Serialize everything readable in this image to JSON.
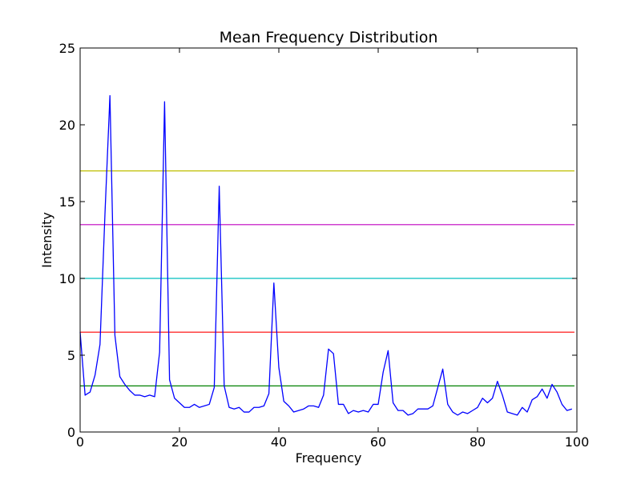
{
  "chart_data": {
    "type": "line",
    "title": "Mean Frequency Distribution",
    "xlabel": "Frequency",
    "ylabel": "Intensity",
    "xlim": [
      0,
      100
    ],
    "ylim": [
      0,
      25
    ],
    "xticks": [
      0,
      20,
      40,
      60,
      80,
      100
    ],
    "yticks": [
      0,
      5,
      10,
      15,
      20,
      25
    ],
    "grid": false,
    "series": [
      {
        "color": "#0000ff",
        "x": [
          0,
          1,
          2,
          3,
          4,
          5,
          6,
          7,
          8,
          9,
          10,
          11,
          12,
          13,
          14,
          15,
          16,
          17,
          18,
          19,
          20,
          21,
          22,
          23,
          24,
          25,
          26,
          27,
          28,
          29,
          30,
          31,
          32,
          33,
          34,
          35,
          36,
          37,
          38,
          39,
          40,
          41,
          42,
          43,
          44,
          45,
          46,
          47,
          48,
          49,
          50,
          51,
          52,
          53,
          54,
          55,
          56,
          57,
          58,
          59,
          60,
          61,
          62,
          63,
          64,
          65,
          66,
          67,
          68,
          69,
          70,
          71,
          72,
          73,
          74,
          75,
          76,
          77,
          78,
          79,
          80,
          81,
          82,
          83,
          84,
          85,
          86,
          87,
          88,
          89,
          90,
          91,
          92,
          93,
          94,
          95,
          96,
          97,
          98,
          99
        ],
        "y": [
          6.5,
          2.4,
          2.6,
          3.7,
          5.7,
          14.2,
          21.9,
          6.3,
          3.6,
          3.1,
          2.7,
          2.4,
          2.4,
          2.3,
          2.4,
          2.3,
          5.2,
          21.5,
          3.4,
          2.2,
          1.9,
          1.6,
          1.6,
          1.8,
          1.6,
          1.7,
          1.8,
          2.9,
          16.0,
          3.0,
          1.6,
          1.5,
          1.6,
          1.3,
          1.3,
          1.6,
          1.6,
          1.7,
          2.5,
          9.7,
          4.2,
          2.0,
          1.7,
          1.3,
          1.4,
          1.5,
          1.7,
          1.7,
          1.6,
          2.4,
          5.4,
          5.1,
          1.8,
          1.8,
          1.2,
          1.4,
          1.3,
          1.4,
          1.3,
          1.8,
          1.8,
          3.9,
          5.3,
          1.9,
          1.4,
          1.4,
          1.1,
          1.2,
          1.5,
          1.5,
          1.5,
          1.7,
          2.9,
          4.1,
          1.8,
          1.3,
          1.1,
          1.3,
          1.2,
          1.4,
          1.6,
          2.2,
          1.9,
          2.2,
          3.3,
          2.4,
          1.3,
          1.2,
          1.1,
          1.6,
          1.3,
          2.1,
          2.3,
          2.8,
          2.2,
          3.1,
          2.6,
          1.8,
          1.4,
          1.5
        ]
      }
    ],
    "hlines": [
      {
        "y": 3.0,
        "color": "#008000"
      },
      {
        "y": 6.5,
        "color": "#ff0000"
      },
      {
        "y": 10.0,
        "color": "#00bfbf"
      },
      {
        "y": 13.5,
        "color": "#bf00bf"
      },
      {
        "y": 17.0,
        "color": "#bfbf00"
      }
    ]
  }
}
